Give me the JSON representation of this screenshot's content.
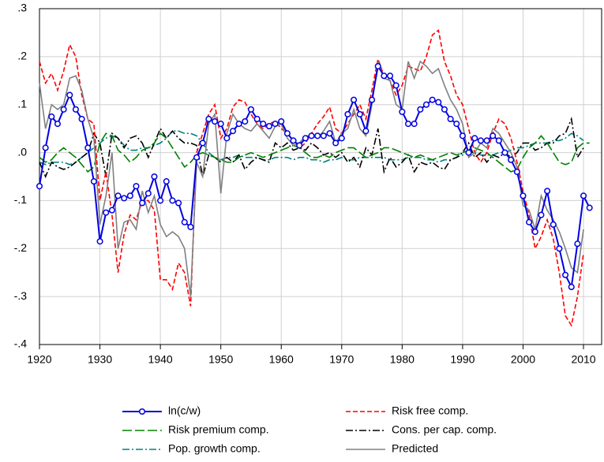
{
  "chart_data": {
    "type": "line",
    "x": [
      1920,
      1921,
      1922,
      1923,
      1924,
      1925,
      1926,
      1927,
      1928,
      1929,
      1930,
      1931,
      1932,
      1933,
      1934,
      1935,
      1936,
      1937,
      1938,
      1939,
      1940,
      1941,
      1942,
      1943,
      1944,
      1945,
      1946,
      1947,
      1948,
      1949,
      1950,
      1951,
      1952,
      1953,
      1954,
      1955,
      1956,
      1957,
      1958,
      1959,
      1960,
      1961,
      1962,
      1963,
      1964,
      1965,
      1966,
      1967,
      1968,
      1969,
      1970,
      1971,
      1972,
      1973,
      1974,
      1975,
      1976,
      1977,
      1978,
      1979,
      1980,
      1981,
      1982,
      1983,
      1984,
      1985,
      1986,
      1987,
      1988,
      1989,
      1990,
      1991,
      1992,
      1993,
      1994,
      1995,
      1996,
      1997,
      1998,
      1999,
      2000,
      2001,
      2002,
      2003,
      2004,
      2005,
      2006,
      2007,
      2008,
      2009,
      2010,
      2011
    ],
    "xlim": [
      1920,
      2013
    ],
    "xticks": [
      1920,
      1930,
      1940,
      1950,
      1960,
      1970,
      1980,
      1990,
      2000,
      2010
    ],
    "ylim": [
      -0.4,
      0.3
    ],
    "yticks": [
      {
        "value": -0.4,
        "label": "-.4"
      },
      {
        "value": -0.3,
        "label": "-.3"
      },
      {
        "value": -0.2,
        "label": "-.2"
      },
      {
        "value": -0.1,
        "label": "-.1"
      },
      {
        "value": 0,
        "label": ".0"
      },
      {
        "value": 0.1,
        "label": ".1"
      },
      {
        "value": 0.2,
        "label": ".2"
      },
      {
        "value": 0.3,
        "label": ".3"
      }
    ],
    "grid": true,
    "series": [
      {
        "name": "ln(c/w)",
        "color": "#0000e0",
        "style": "solid",
        "marker": "circle",
        "values": [
          -0.07,
          0.01,
          0.075,
          0.06,
          0.09,
          0.12,
          0.09,
          0.07,
          0.01,
          -0.06,
          -0.185,
          -0.125,
          -0.12,
          -0.09,
          -0.095,
          -0.09,
          -0.07,
          -0.105,
          -0.085,
          -0.05,
          -0.1,
          -0.06,
          -0.1,
          -0.105,
          -0.145,
          -0.155,
          -0.01,
          0.02,
          0.07,
          0.065,
          0.06,
          0.03,
          0.045,
          0.06,
          0.065,
          0.09,
          0.07,
          0.06,
          0.055,
          0.06,
          0.065,
          0.04,
          0.025,
          0.015,
          0.03,
          0.035,
          0.035,
          0.035,
          0.04,
          0.02,
          0.03,
          0.08,
          0.11,
          0.08,
          0.045,
          0.11,
          0.18,
          0.16,
          0.16,
          0.14,
          0.085,
          0.06,
          0.06,
          0.09,
          0.1,
          0.11,
          0.105,
          0.09,
          0.07,
          0.06,
          0.035,
          0.0,
          0.03,
          0.025,
          0.025,
          0.035,
          0.025,
          0.0,
          -0.015,
          -0.04,
          -0.09,
          -0.145,
          -0.165,
          -0.13,
          -0.08,
          -0.15,
          -0.2,
          -0.255,
          -0.28,
          -0.19,
          -0.09,
          -0.115
        ]
      },
      {
        "name": "Risk free comp.",
        "color": "#ff0000",
        "style": "dashed",
        "values": [
          0.19,
          0.145,
          0.165,
          0.13,
          0.17,
          0.225,
          0.2,
          0.12,
          0.07,
          0.06,
          -0.1,
          -0.04,
          -0.13,
          -0.25,
          -0.17,
          -0.13,
          -0.14,
          -0.1,
          -0.1,
          -0.12,
          -0.265,
          -0.265,
          -0.285,
          -0.23,
          -0.25,
          -0.32,
          0.0,
          0.04,
          0.08,
          0.1,
          0.03,
          0.05,
          0.095,
          0.11,
          0.105,
          0.08,
          0.06,
          0.05,
          0.06,
          0.065,
          0.05,
          0.04,
          0.025,
          0.01,
          0.02,
          0.04,
          0.06,
          0.075,
          0.095,
          0.05,
          0.04,
          0.06,
          0.08,
          0.1,
          0.07,
          0.13,
          0.195,
          0.16,
          0.15,
          0.12,
          0.14,
          0.18,
          0.175,
          0.17,
          0.2,
          0.245,
          0.255,
          0.19,
          0.16,
          0.12,
          0.1,
          0.05,
          0.0,
          -0.02,
          0.0,
          0.04,
          0.07,
          0.06,
          0.03,
          -0.02,
          -0.08,
          -0.13,
          -0.2,
          -0.175,
          -0.14,
          -0.18,
          -0.25,
          -0.34,
          -0.36,
          -0.3,
          -0.21,
          null
        ]
      },
      {
        "name": "Risk premium comp.",
        "color": "#008000",
        "style": "longdash",
        "values": [
          -0.01,
          -0.02,
          -0.015,
          0.0,
          0.01,
          0.0,
          -0.01,
          -0.025,
          -0.04,
          -0.03,
          0.02,
          0.04,
          0.035,
          0.005,
          -0.005,
          -0.02,
          -0.01,
          0.005,
          0.01,
          0.02,
          0.04,
          0.03,
          0.01,
          -0.01,
          -0.03,
          -0.02,
          -0.005,
          0.0,
          -0.005,
          -0.01,
          -0.015,
          -0.02,
          -0.02,
          -0.01,
          -0.005,
          0.0,
          -0.005,
          -0.01,
          -0.005,
          0.0,
          0.005,
          0.01,
          0.015,
          0.01,
          0.0,
          -0.01,
          -0.01,
          -0.005,
          -0.01,
          0.0,
          0.005,
          0.01,
          0.01,
          0.0,
          -0.01,
          -0.005,
          0.0,
          0.01,
          0.01,
          0.005,
          0.0,
          -0.005,
          -0.01,
          -0.005,
          -0.01,
          -0.015,
          -0.01,
          -0.005,
          0.0,
          -0.005,
          0.0,
          0.005,
          0.01,
          0.005,
          0.0,
          -0.01,
          -0.02,
          -0.03,
          -0.04,
          -0.035,
          -0.01,
          0.01,
          0.02,
          0.035,
          0.02,
          0.0,
          -0.02,
          -0.025,
          -0.02,
          0.01,
          0.02,
          0.02
        ]
      },
      {
        "name": "Cons. per cap. comp.",
        "color": "#000000",
        "style": "dashdot",
        "values": [
          -0.02,
          -0.05,
          -0.02,
          -0.03,
          -0.035,
          -0.03,
          -0.02,
          -0.01,
          0.0,
          0.04,
          0.02,
          -0.05,
          0.04,
          0.03,
          0.01,
          0.03,
          0.035,
          0.02,
          -0.01,
          0.02,
          0.05,
          0.03,
          0.045,
          0.03,
          0.02,
          0.02,
          0.015,
          -0.05,
          -0.005,
          -0.01,
          -0.02,
          -0.01,
          -0.02,
          -0.005,
          -0.035,
          -0.02,
          -0.01,
          -0.015,
          -0.02,
          0.02,
          0.01,
          0.02,
          0.005,
          0.01,
          0.005,
          0.02,
          0.01,
          -0.005,
          0.0,
          -0.01,
          0.0,
          -0.02,
          -0.01,
          -0.03,
          0.01,
          -0.005,
          0.05,
          -0.04,
          -0.01,
          -0.03,
          -0.02,
          -0.005,
          -0.04,
          -0.02,
          -0.025,
          -0.02,
          -0.03,
          -0.035,
          -0.015,
          -0.01,
          0.0,
          0.02,
          -0.01,
          0.0,
          -0.02,
          -0.005,
          -0.01,
          0.0,
          -0.01,
          0.0,
          0.02,
          0.02,
          0.005,
          0.01,
          0.02,
          0.02,
          0.035,
          0.04,
          0.07,
          -0.01,
          0.01,
          null
        ]
      },
      {
        "name": "Pop. growth comp.",
        "color": "#008080",
        "style": "dashdot",
        "values": [
          -0.02,
          -0.025,
          -0.02,
          -0.02,
          -0.02,
          -0.025,
          -0.02,
          -0.01,
          0.0,
          0.01,
          0.02,
          0.03,
          0.035,
          0.03,
          0.015,
          0.005,
          0.005,
          0.01,
          0.01,
          0.015,
          0.02,
          0.03,
          0.045,
          0.045,
          0.04,
          0.04,
          0.035,
          0.02,
          0.0,
          -0.01,
          -0.015,
          -0.01,
          -0.01,
          -0.005,
          -0.01,
          -0.01,
          -0.01,
          -0.015,
          -0.015,
          -0.01,
          -0.01,
          -0.01,
          -0.015,
          -0.01,
          -0.01,
          -0.015,
          -0.015,
          -0.02,
          -0.015,
          -0.015,
          -0.01,
          -0.015,
          -0.015,
          -0.01,
          -0.01,
          -0.01,
          -0.01,
          -0.01,
          -0.015,
          -0.015,
          -0.015,
          -0.01,
          -0.01,
          -0.01,
          -0.015,
          -0.015,
          -0.02,
          -0.015,
          -0.015,
          -0.01,
          -0.005,
          0.0,
          0.0,
          -0.005,
          -0.005,
          -0.005,
          0.0,
          0.0,
          0.005,
          0.01,
          0.01,
          0.015,
          0.02,
          0.02,
          0.02,
          0.025,
          0.025,
          0.03,
          0.04,
          0.035,
          0.025,
          null
        ]
      },
      {
        "name": "Predicted",
        "color": "#808080",
        "style": "solid",
        "values": [
          0.145,
          0.05,
          0.1,
          0.09,
          0.1,
          0.155,
          0.16,
          0.13,
          0.07,
          0.03,
          -0.15,
          -0.09,
          0.0,
          -0.2,
          -0.145,
          -0.14,
          -0.16,
          -0.08,
          -0.125,
          -0.09,
          -0.15,
          -0.175,
          -0.165,
          -0.175,
          -0.2,
          -0.3,
          -0.02,
          -0.05,
          0.06,
          0.08,
          -0.085,
          0.04,
          0.08,
          0.06,
          0.05,
          0.045,
          0.06,
          0.045,
          0.03,
          0.055,
          0.06,
          0.03,
          0.015,
          0.02,
          0.035,
          0.035,
          0.03,
          0.045,
          0.065,
          0.02,
          0.04,
          0.05,
          0.09,
          0.05,
          0.035,
          0.1,
          0.19,
          0.155,
          0.15,
          0.1,
          0.09,
          0.19,
          0.155,
          0.19,
          0.18,
          0.165,
          0.175,
          0.14,
          0.11,
          0.09,
          0.06,
          -0.01,
          0.0,
          0.02,
          0.01,
          0.05,
          0.04,
          0.02,
          0.0,
          -0.03,
          -0.11,
          -0.12,
          -0.16,
          -0.09,
          -0.12,
          -0.14,
          -0.165,
          -0.2,
          -0.24,
          -0.25,
          -0.16,
          null
        ]
      }
    ]
  }
}
